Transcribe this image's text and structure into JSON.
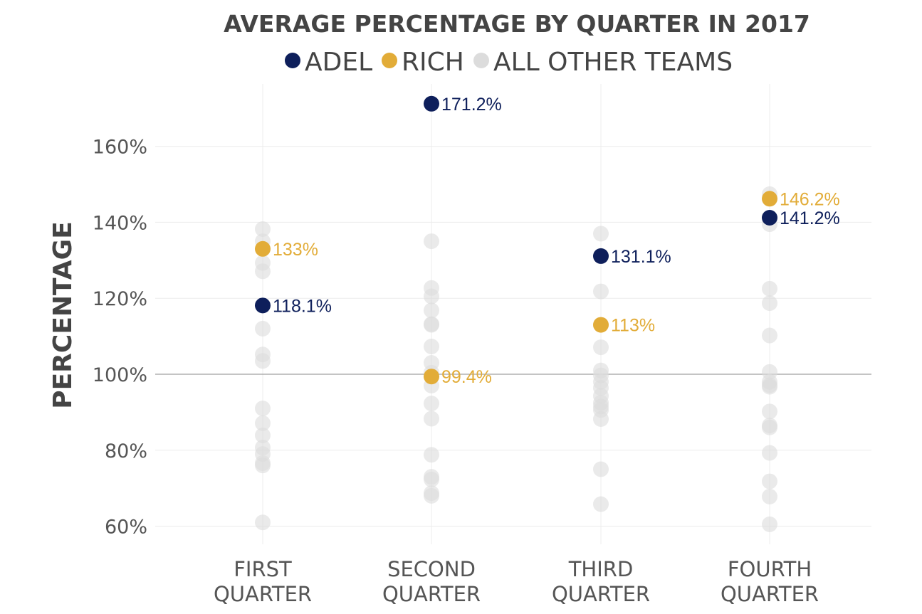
{
  "chart_data": {
    "type": "scatter",
    "title": "AVERAGE PERCENTAGE BY QUARTER IN 2017",
    "ylabel": "PERCENTAGE",
    "xlabel": "",
    "ylim": [
      55,
      175
    ],
    "yticks": [
      60,
      80,
      100,
      120,
      140,
      160
    ],
    "ytick_labels": [
      "60%",
      "80%",
      "100%",
      "120%",
      "140%",
      "160%"
    ],
    "reference_line": 100,
    "grid": true,
    "legend_placement": "top-center",
    "categories": [
      {
        "lines": [
          "FIRST",
          "QUARTER"
        ]
      },
      {
        "lines": [
          "SECOND",
          "QUARTER"
        ]
      },
      {
        "lines": [
          "THIRD",
          "QUARTER"
        ]
      },
      {
        "lines": [
          "FOURTH",
          "QUARTER"
        ]
      }
    ],
    "series": [
      {
        "name": "ALL OTHER TEAMS",
        "color": "#dcdcdc",
        "values": [
          [
            138.2,
            135,
            129.3,
            127.1,
            112,
            105.2,
            103.5,
            91,
            87.1,
            83.9,
            80.7,
            79,
            76.6,
            76,
            61
          ],
          [
            135,
            122.7,
            120.5,
            116.8,
            113.2,
            113,
            107.3,
            103,
            100.4,
            97,
            92.3,
            88.3,
            78.8,
            73,
            72.3,
            68.7,
            68
          ],
          [
            137,
            121.8,
            107.1,
            101,
            99.7,
            98,
            96.4,
            94.3,
            92.5,
            91.5,
            90.6,
            88.2,
            75,
            65.8
          ],
          [
            147.4,
            139.5,
            122.5,
            118.7,
            110.2,
            100.6,
            98,
            97.1,
            96.7,
            90.2,
            86.5,
            86,
            79.3,
            71.8,
            67.8,
            60.5
          ]
        ]
      },
      {
        "name": "ADEL",
        "color": "#0e1f5b",
        "values": [
          118.1,
          171.2,
          131.1,
          141.2
        ],
        "labels": [
          "118.1%",
          "171.2%",
          "131.1%",
          "141.2%"
        ]
      },
      {
        "name": "RICH",
        "color": "#e2ac38",
        "values": [
          133,
          99.4,
          113,
          146.2
        ],
        "labels": [
          "133%",
          "99.4%",
          "113%",
          "146.2%"
        ]
      }
    ]
  },
  "colors": {
    "adel": "#0e1f5b",
    "rich": "#e2ac38",
    "others": "#dcdcdc",
    "text": "#444444"
  }
}
